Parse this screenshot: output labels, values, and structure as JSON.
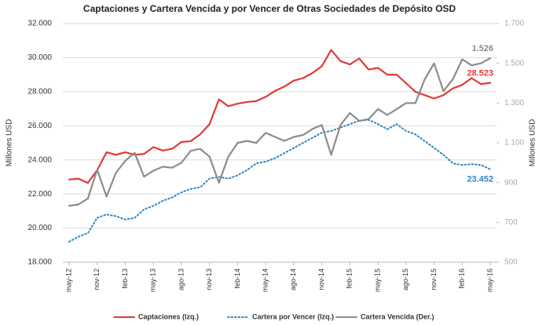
{
  "chart_data": {
    "type": "line",
    "title": "Captaciones y Cartera Vencida y por Vencer de Otras Sociedades de Depósito OSD",
    "y_label": "Millones USD",
    "y2_label": "Millones USD",
    "categories": [
      "may-12",
      null,
      null,
      "nov-12",
      null,
      null,
      "feb-13",
      null,
      null,
      "may-13",
      null,
      null,
      "ago-13",
      null,
      null,
      "nov-13",
      null,
      null,
      "feb-14",
      null,
      null,
      "may-14",
      null,
      null,
      "ago-14",
      null,
      null,
      "nov-14",
      null,
      null,
      "feb-15",
      null,
      null,
      "may-15",
      null,
      null,
      "ago-15",
      null,
      null,
      "nov-15",
      null,
      null,
      "feb-16",
      null,
      null,
      "may-16"
    ],
    "ylim": [
      18000,
      32000
    ],
    "yticks": [
      {
        "value": 18000,
        "label": "18.000"
      },
      {
        "value": 20000,
        "label": "20.000"
      },
      {
        "value": 22000,
        "label": "22.000"
      },
      {
        "value": 24000,
        "label": "24.000"
      },
      {
        "value": 26000,
        "label": "26.000"
      },
      {
        "value": 28000,
        "label": "28.000"
      },
      {
        "value": 30000,
        "label": "30.000"
      },
      {
        "value": 32000,
        "label": "32.000"
      }
    ],
    "y2lim": [
      500,
      1700
    ],
    "y2ticks": [
      500,
      700,
      900,
      {
        "value": 1100,
        "label": "1.100"
      },
      {
        "value": 1300,
        "label": "1.300"
      },
      {
        "value": 1500,
        "label": "1.500"
      },
      {
        "value": 1700,
        "label": "1.700"
      }
    ],
    "grid": true,
    "legend": "bottom",
    "series": [
      {
        "name": "Captaciones (Izq.)",
        "color": "#e03a3a",
        "line_style": "solid",
        "values": [
          22850,
          22900,
          22650,
          23400,
          24450,
          24300,
          24450,
          24300,
          24350,
          24750,
          24550,
          24650,
          25050,
          25100,
          25500,
          26100,
          27550,
          27150,
          27300,
          27400,
          27450,
          27700,
          28050,
          28300,
          28650,
          28800,
          29100,
          29500,
          30450,
          29800,
          29600,
          29950,
          29300,
          29400,
          29000,
          29000,
          28500,
          28000,
          27800,
          27600,
          27800,
          28200,
          28400,
          28800,
          28450,
          28523
        ],
        "value_labels": [
          null,
          null,
          null,
          null,
          null,
          null,
          null,
          null,
          null,
          null,
          null,
          null,
          null,
          null,
          null,
          null,
          null,
          null,
          null,
          null,
          null,
          null,
          null,
          null,
          null,
          null,
          null,
          null,
          null,
          null,
          null,
          null,
          null,
          null,
          null,
          null,
          null,
          null,
          null,
          null,
          null,
          null,
          null,
          null,
          null,
          "28.523"
        ]
      },
      {
        "name": "Cartera por Vencer (Izq.)",
        "color": "#2e86c1",
        "line_style": "dotted",
        "values": [
          19200,
          19500,
          19700,
          20600,
          20800,
          20700,
          20500,
          20600,
          21100,
          21300,
          21600,
          21800,
          22100,
          22300,
          22400,
          22900,
          23000,
          22900,
          23100,
          23400,
          23800,
          23900,
          24100,
          24400,
          24700,
          25000,
          25300,
          25600,
          25700,
          25900,
          26100,
          26300,
          26350,
          26100,
          25800,
          26100,
          25700,
          25500,
          25100,
          24700,
          24300,
          23800,
          23700,
          23750,
          23700,
          23452
        ],
        "value_labels": [
          null,
          null,
          null,
          null,
          null,
          null,
          null,
          null,
          null,
          null,
          null,
          null,
          null,
          null,
          null,
          null,
          null,
          null,
          null,
          null,
          null,
          null,
          null,
          null,
          null,
          null,
          null,
          null,
          null,
          null,
          null,
          null,
          null,
          null,
          null,
          null,
          null,
          null,
          null,
          null,
          null,
          null,
          null,
          null,
          null,
          "23.452"
        ]
      },
      {
        "name": "Cartera Vencida (Der.)",
        "color": "#8c8c8c",
        "line_style": "solid",
        "axis": "y2",
        "values": [
          784,
          790,
          820,
          965,
          830,
          950,
          1010,
          1050,
          930,
          960,
          980,
          975,
          1000,
          1060,
          1070,
          1030,
          900,
          1030,
          1100,
          1110,
          1100,
          1150,
          1130,
          1110,
          1130,
          1140,
          1170,
          1190,
          1040,
          1190,
          1250,
          1210,
          1220,
          1270,
          1240,
          1270,
          1300,
          1300,
          1420,
          1500,
          1360,
          1420,
          1520,
          1490,
          1500,
          1526
        ],
        "value_labels": [
          null,
          null,
          null,
          null,
          null,
          null,
          null,
          null,
          null,
          null,
          null,
          null,
          null,
          null,
          null,
          null,
          null,
          null,
          null,
          null,
          null,
          null,
          null,
          null,
          null,
          null,
          null,
          null,
          null,
          null,
          null,
          null,
          null,
          null,
          null,
          null,
          null,
          null,
          null,
          null,
          null,
          null,
          null,
          null,
          null,
          "1.526"
        ]
      }
    ]
  }
}
